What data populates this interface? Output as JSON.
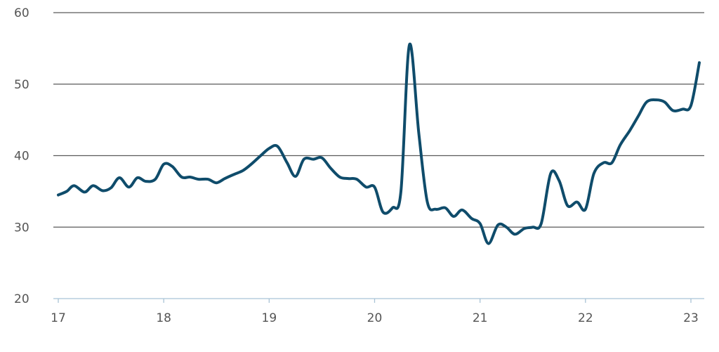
{
  "chart_data": {
    "type": "line",
    "title": "",
    "xlabel": "",
    "ylabel": "",
    "xlim": [
      17,
      23.15
    ],
    "ylim": [
      20,
      60
    ],
    "y_ticks": [
      "20",
      "30",
      "40",
      "50",
      "60"
    ],
    "x_ticks": [
      "17",
      "18",
      "19",
      "20",
      "21",
      "22",
      "23"
    ],
    "grid": "horizontal",
    "colors": {
      "line": "#0f4c6b",
      "grid": "#5a5a5a",
      "axis": "#a9c3d6",
      "text": "#555555"
    },
    "series": [
      {
        "x": [
          17.0,
          17.08,
          17.15,
          17.25,
          17.33,
          17.42,
          17.5,
          17.58,
          17.67,
          17.75,
          17.83,
          17.92,
          18.0,
          18.08,
          18.17,
          18.25,
          18.33,
          18.42,
          18.5,
          18.58,
          18.67,
          18.75,
          18.83,
          18.92,
          19.0,
          19.08,
          19.17,
          19.25,
          19.33,
          19.42,
          19.5,
          19.58,
          19.67,
          19.75,
          19.83,
          19.92,
          20.0,
          20.08,
          20.17,
          20.25,
          20.33,
          20.42,
          20.5,
          20.58,
          20.67,
          20.75,
          20.83,
          20.92,
          21.0,
          21.08,
          21.17,
          21.25,
          21.33,
          21.42,
          21.5,
          21.58,
          21.67,
          21.75,
          21.83,
          21.92,
          22.0,
          22.08,
          22.17,
          22.25,
          22.33,
          22.42,
          22.5,
          22.58,
          22.67,
          22.75,
          22.83,
          22.92,
          23.0,
          23.08
        ],
        "y": [
          34.5,
          35.0,
          35.8,
          34.9,
          35.8,
          35.1,
          35.5,
          36.9,
          35.6,
          36.9,
          36.4,
          36.7,
          38.8,
          38.5,
          37.0,
          37.0,
          36.7,
          36.7,
          36.2,
          36.8,
          37.4,
          37.9,
          38.8,
          40.0,
          41.0,
          41.3,
          39.0,
          37.1,
          39.5,
          39.5,
          39.7,
          38.3,
          37.0,
          36.8,
          36.7,
          35.6,
          35.6,
          32.1,
          32.7,
          35.0,
          55.5,
          43.0,
          33.5,
          32.5,
          32.7,
          31.5,
          32.4,
          31.2,
          30.5,
          27.7,
          30.3,
          30.0,
          29.0,
          29.8,
          30.0,
          30.5,
          37.5,
          36.5,
          33.0,
          33.5,
          32.5,
          37.5,
          39.0,
          39.0,
          41.5,
          43.5,
          45.5,
          47.5,
          47.8,
          47.5,
          46.3,
          46.5,
          47.0,
          53.0
        ]
      }
    ]
  }
}
